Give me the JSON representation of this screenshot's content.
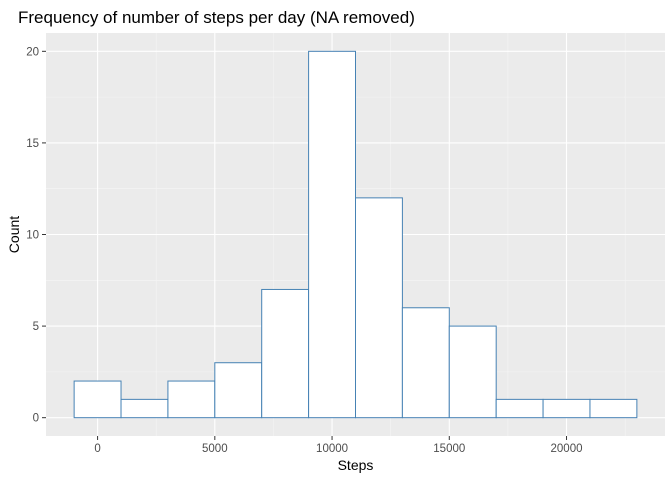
{
  "chart_data": {
    "type": "bar",
    "title": "Frequency of number of steps per day (NA removed)",
    "xlabel": "Steps",
    "ylabel": "Count",
    "bin_width": 2000,
    "bins": [
      {
        "start": -1000,
        "end": 1000,
        "count": 2
      },
      {
        "start": 1000,
        "end": 3000,
        "count": 1
      },
      {
        "start": 3000,
        "end": 5000,
        "count": 2
      },
      {
        "start": 5000,
        "end": 7000,
        "count": 3
      },
      {
        "start": 7000,
        "end": 9000,
        "count": 7
      },
      {
        "start": 9000,
        "end": 11000,
        "count": 20
      },
      {
        "start": 11000,
        "end": 13000,
        "count": 12
      },
      {
        "start": 13000,
        "end": 15000,
        "count": 6
      },
      {
        "start": 15000,
        "end": 17000,
        "count": 5
      },
      {
        "start": 17000,
        "end": 19000,
        "count": 1
      },
      {
        "start": 19000,
        "end": 21000,
        "count": 1
      },
      {
        "start": 21000,
        "end": 23000,
        "count": 1
      }
    ],
    "xlim": [
      -2200,
      24200
    ],
    "ylim": [
      -1,
      21
    ],
    "x_ticks": [
      0,
      5000,
      10000,
      15000,
      20000
    ],
    "y_ticks": [
      0,
      5,
      10,
      15,
      20
    ],
    "grid": true,
    "colors": {
      "panel_background": "#ebebeb",
      "grid_major": "#ffffff",
      "grid_minor": "#f5f5f5",
      "bar_fill": "#ffffff",
      "bar_outline": "#4682b4",
      "tick_label": "#4d4d4d",
      "tick_mark": "#333333"
    }
  }
}
